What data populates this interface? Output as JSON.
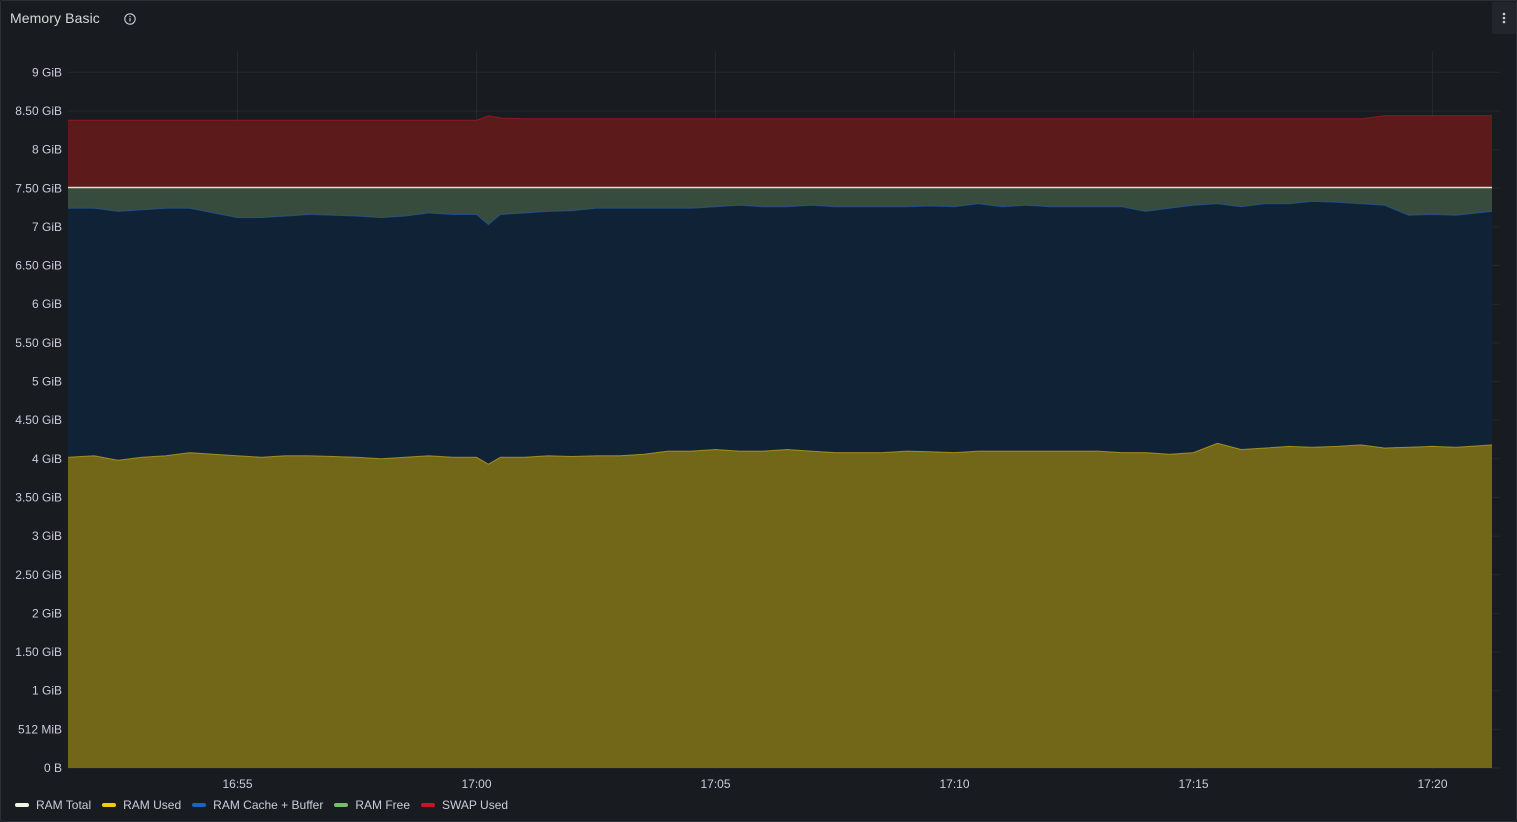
{
  "panel": {
    "title": "Memory Basic",
    "info_icon": "info-circle-icon",
    "menu_icon": "kebab-menu-icon"
  },
  "chart_data": {
    "type": "area",
    "stacked": true,
    "title": "Memory Basic",
    "xlabel": "",
    "ylabel": "",
    "ylim_gib": [
      0,
      9.2
    ],
    "grid": true,
    "legend_position": "bottom-left",
    "y_ticks": [
      {
        "value": 0,
        "label": "0 B"
      },
      {
        "value": 0.5,
        "label": "512 MiB"
      },
      {
        "value": 1,
        "label": "1 GiB"
      },
      {
        "value": 1.5,
        "label": "1.50 GiB"
      },
      {
        "value": 2,
        "label": "2 GiB"
      },
      {
        "value": 2.5,
        "label": "2.50 GiB"
      },
      {
        "value": 3,
        "label": "3 GiB"
      },
      {
        "value": 3.5,
        "label": "3.50 GiB"
      },
      {
        "value": 4,
        "label": "4 GiB"
      },
      {
        "value": 4.5,
        "label": "4.50 GiB"
      },
      {
        "value": 5,
        "label": "5 GiB"
      },
      {
        "value": 5.5,
        "label": "5.50 GiB"
      },
      {
        "value": 6,
        "label": "6 GiB"
      },
      {
        "value": 6.5,
        "label": "6.50 GiB"
      },
      {
        "value": 7,
        "label": "7 GiB"
      },
      {
        "value": 7.5,
        "label": "7.50 GiB"
      },
      {
        "value": 8,
        "label": "8 GiB"
      },
      {
        "value": 8.5,
        "label": "8.50 GiB"
      },
      {
        "value": 9,
        "label": "9 GiB"
      }
    ],
    "x_range_minutes": [
      -3.55,
      26.25
    ],
    "x_ticks": [
      {
        "value": 0,
        "label": "16:55"
      },
      {
        "value": 5,
        "label": "17:00"
      },
      {
        "value": 10,
        "label": "17:05"
      },
      {
        "value": 15,
        "label": "17:10"
      },
      {
        "value": 20,
        "label": "17:15"
      },
      {
        "value": 25,
        "label": "17:20"
      }
    ],
    "x_minutes_after_1655": [
      -3.5,
      -3,
      -2.5,
      -2,
      -1.5,
      -1,
      -0.5,
      0,
      0.5,
      1,
      1.5,
      2,
      2.5,
      3,
      3.5,
      4,
      4.5,
      5,
      5.25,
      5.5,
      6,
      6.5,
      7,
      7.5,
      8,
      8.5,
      9,
      9.5,
      10,
      10.5,
      11,
      11.5,
      12,
      12.5,
      13,
      13.5,
      14,
      14.5,
      15,
      15.5,
      16,
      16.5,
      17,
      17.5,
      18,
      18.5,
      19,
      19.5,
      20,
      20.5,
      21,
      21.5,
      22,
      22.5,
      23,
      23.5,
      24,
      24.5,
      25,
      25.5,
      26
    ],
    "series": [
      {
        "name": "RAM Total",
        "color": "#f2f3e4",
        "stacked": false,
        "values": [
          7.51,
          7.51,
          7.51,
          7.51,
          7.51,
          7.51,
          7.51,
          7.51,
          7.51,
          7.51,
          7.51,
          7.51,
          7.51,
          7.51,
          7.51,
          7.51,
          7.51,
          7.51,
          7.51,
          7.51,
          7.51,
          7.51,
          7.51,
          7.51,
          7.51,
          7.51,
          7.51,
          7.51,
          7.51,
          7.51,
          7.51,
          7.51,
          7.51,
          7.51,
          7.51,
          7.51,
          7.51,
          7.51,
          7.51,
          7.51,
          7.51,
          7.51,
          7.51,
          7.51,
          7.51,
          7.51,
          7.51,
          7.51,
          7.51,
          7.51,
          7.51,
          7.51,
          7.51,
          7.51,
          7.51,
          7.51,
          7.51,
          7.51,
          7.51,
          7.51,
          7.51
        ]
      },
      {
        "name": "RAM Used",
        "color": "#f2cc0c",
        "fill": "#726619",
        "values": [
          4.02,
          4.04,
          3.98,
          4.02,
          4.04,
          4.08,
          4.06,
          4.04,
          4.02,
          4.04,
          4.04,
          4.03,
          4.02,
          4.0,
          4.02,
          4.04,
          4.02,
          4.02,
          3.93,
          4.02,
          4.02,
          4.04,
          4.03,
          4.04,
          4.04,
          4.06,
          4.1,
          4.1,
          4.12,
          4.1,
          4.1,
          4.12,
          4.1,
          4.08,
          4.08,
          4.08,
          4.1,
          4.09,
          4.08,
          4.1,
          4.1,
          4.1,
          4.1,
          4.1,
          4.1,
          4.08,
          4.08,
          4.06,
          4.08,
          4.2,
          4.12,
          4.14,
          4.16,
          4.15,
          4.16,
          4.18,
          4.14,
          4.15,
          4.16,
          4.15,
          4.18
        ]
      },
      {
        "name": "RAM Cache + Buffer",
        "color": "#1f60c4",
        "fill": "#102336",
        "values": [
          3.22,
          3.2,
          3.22,
          3.2,
          3.2,
          3.16,
          3.12,
          3.08,
          3.1,
          3.1,
          3.12,
          3.12,
          3.12,
          3.12,
          3.12,
          3.14,
          3.14,
          3.14,
          3.1,
          3.14,
          3.16,
          3.16,
          3.18,
          3.2,
          3.2,
          3.18,
          3.14,
          3.14,
          3.14,
          3.18,
          3.16,
          3.14,
          3.18,
          3.18,
          3.18,
          3.18,
          3.16,
          3.18,
          3.18,
          3.2,
          3.16,
          3.18,
          3.16,
          3.16,
          3.16,
          3.18,
          3.12,
          3.18,
          3.2,
          3.1,
          3.14,
          3.16,
          3.14,
          3.18,
          3.16,
          3.12,
          3.14,
          3.0,
          3.0,
          3.0,
          3.02
        ]
      },
      {
        "name": "RAM Free",
        "color": "#73bf69",
        "fill": "#384c3d",
        "values": [
          0.27,
          0.27,
          0.31,
          0.29,
          0.27,
          0.27,
          0.33,
          0.39,
          0.39,
          0.37,
          0.35,
          0.36,
          0.37,
          0.39,
          0.37,
          0.33,
          0.35,
          0.35,
          0.48,
          0.35,
          0.33,
          0.31,
          0.3,
          0.27,
          0.27,
          0.27,
          0.27,
          0.27,
          0.25,
          0.23,
          0.25,
          0.25,
          0.23,
          0.25,
          0.25,
          0.25,
          0.25,
          0.24,
          0.25,
          0.21,
          0.25,
          0.23,
          0.25,
          0.25,
          0.25,
          0.25,
          0.31,
          0.27,
          0.23,
          0.21,
          0.25,
          0.21,
          0.21,
          0.18,
          0.19,
          0.21,
          0.23,
          0.36,
          0.35,
          0.36,
          0.31
        ]
      },
      {
        "name": "SWAP Used",
        "color": "#c4162a",
        "fill": "#5c1b1a",
        "values": [
          0.87,
          0.87,
          0.87,
          0.87,
          0.87,
          0.87,
          0.87,
          0.87,
          0.87,
          0.87,
          0.87,
          0.87,
          0.87,
          0.87,
          0.87,
          0.87,
          0.87,
          0.87,
          0.93,
          0.9,
          0.89,
          0.89,
          0.89,
          0.89,
          0.89,
          0.89,
          0.89,
          0.89,
          0.89,
          0.89,
          0.89,
          0.89,
          0.89,
          0.89,
          0.89,
          0.89,
          0.89,
          0.89,
          0.89,
          0.89,
          0.89,
          0.89,
          0.89,
          0.89,
          0.89,
          0.89,
          0.89,
          0.89,
          0.89,
          0.89,
          0.89,
          0.89,
          0.89,
          0.89,
          0.89,
          0.89,
          0.93,
          0.93,
          0.93,
          0.93,
          0.93
        ]
      }
    ]
  },
  "legend": {
    "items": [
      {
        "label": "RAM Total",
        "color": "#f2f3e4"
      },
      {
        "label": "RAM Used",
        "color": "#f2cc0c"
      },
      {
        "label": "RAM Cache + Buffer",
        "color": "#1f60c4"
      },
      {
        "label": "RAM Free",
        "color": "#73bf69"
      },
      {
        "label": "SWAP Used",
        "color": "#c4162a"
      }
    ]
  }
}
